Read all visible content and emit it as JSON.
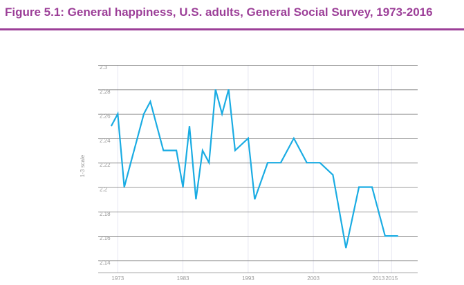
{
  "figure": {
    "title": "Figure 5.1: General happiness, U.S. adults, General Social Survey, 1973-2016",
    "title_color": "#9c3f98"
  },
  "chart_data": {
    "type": "line",
    "title": "",
    "xlabel": "",
    "ylabel": "1-3 scale",
    "ylim": [
      2.13,
      2.3
    ],
    "xlim": [
      1970,
      2019
    ],
    "y_ticks": [
      2.3,
      2.28,
      2.26,
      2.24,
      2.22,
      2.2,
      2.18,
      2.16,
      2.14
    ],
    "y_tick_labels": [
      "2.3",
      "2.28",
      "2.26",
      "2.24",
      "2.22",
      "2.2",
      "2.18",
      "2.16",
      "2.14"
    ],
    "x_ticks": [
      1973,
      1983,
      1993,
      2003,
      2013,
      2015
    ],
    "x_tick_labels": [
      "1973",
      "1983",
      "1993",
      "2003",
      "2013",
      "2015"
    ],
    "grid": "horizontal",
    "line_color": "#1aace3",
    "series": [
      {
        "x": [
          1972,
          1973,
          1974,
          1975,
          1976,
          1977,
          1978,
          1980,
          1982,
          1983,
          1984,
          1985,
          1986,
          1987,
          1988,
          1989,
          1990,
          1991,
          1993,
          1994,
          1996,
          1998,
          2000,
          2002,
          2004,
          2006,
          2008,
          2010,
          2012,
          2014,
          2016
        ],
        "y": [
          2.25,
          2.26,
          2.2,
          2.22,
          2.24,
          2.26,
          2.27,
          2.23,
          2.23,
          2.2,
          2.25,
          2.19,
          2.23,
          2.22,
          2.28,
          2.26,
          2.28,
          2.23,
          2.24,
          2.19,
          2.22,
          2.22,
          2.24,
          2.22,
          2.22,
          2.21,
          2.15,
          2.2,
          2.2,
          2.16,
          2.16
        ]
      }
    ]
  }
}
